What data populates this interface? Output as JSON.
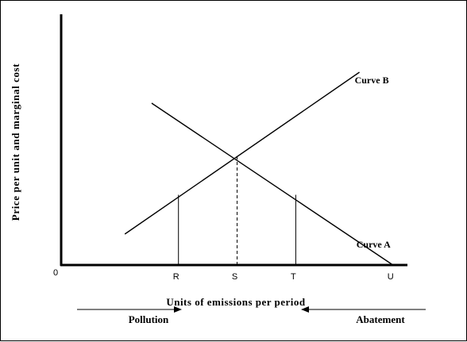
{
  "chart_data": {
    "type": "line",
    "title": "",
    "xlabel": "Units of emissions per period",
    "ylabel": "Price per unit and marginal cost",
    "xlim": [
      0,
      10
    ],
    "ylim": [
      0,
      10
    ],
    "origin_label": "0",
    "grid": false,
    "x_tick_labels": [
      {
        "label": "R",
        "x": 3.5
      },
      {
        "label": "S",
        "x": 5.25
      },
      {
        "label": "T",
        "x": 7.0
      },
      {
        "label": "U",
        "x": 9.9
      }
    ],
    "series": [
      {
        "name": "Curve A",
        "x": [
          2.7,
          9.9
        ],
        "y": [
          6.8,
          0.0
        ]
      },
      {
        "name": "Curve B",
        "x": [
          1.9,
          8.9
        ],
        "y": [
          1.3,
          8.1
        ]
      }
    ],
    "verticals": [
      {
        "label": "R",
        "x": 3.5,
        "y": 2.95,
        "style": "solid"
      },
      {
        "label": "S",
        "x": 5.25,
        "y": 4.6,
        "style": "dashed"
      },
      {
        "label": "T",
        "x": 7.0,
        "y": 2.95,
        "style": "solid"
      }
    ],
    "arrows": [
      {
        "label": "Pollution",
        "direction": "right"
      },
      {
        "label": "Abatement",
        "direction": "left"
      }
    ]
  }
}
